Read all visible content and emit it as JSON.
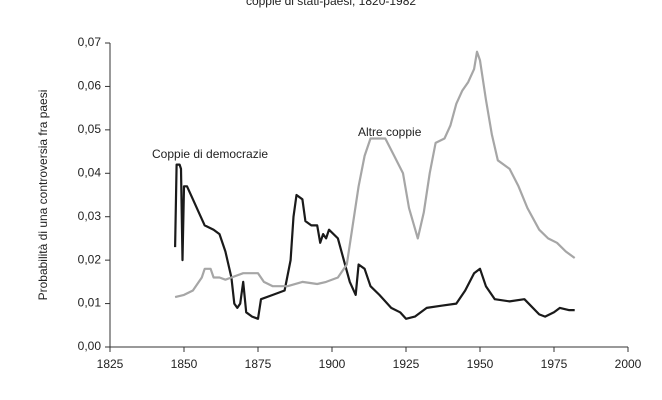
{
  "chart_data": {
    "type": "line",
    "title": "coppie di stati-paesi, 1820-1982",
    "y_label": "Probabilità di una controversia fra paesi",
    "xlim": [
      1825,
      2000
    ],
    "xticks": [
      1825,
      1850,
      1875,
      1900,
      1925,
      1950,
      1975,
      2000
    ],
    "ylim": [
      0,
      0.07
    ],
    "yticks": [
      {
        "value": 0,
        "label": "0,00"
      },
      {
        "value": 0.01,
        "label": "0,01"
      },
      {
        "value": 0.02,
        "label": "0,02"
      },
      {
        "value": 0.03,
        "label": "0,03"
      },
      {
        "value": 0.04,
        "label": "0,04"
      },
      {
        "value": 0.05,
        "label": "0,05"
      },
      {
        "value": 0.06,
        "label": "0,06"
      },
      {
        "value": 0.07,
        "label": "0,07"
      }
    ],
    "grid": false,
    "series": [
      {
        "name": "Coppie di democrazie",
        "color": "#1a1a1a",
        "x": [
          1847,
          1847.5,
          1848.5,
          1849,
          1849.5,
          1850,
          1851,
          1853,
          1855,
          1857,
          1860,
          1862,
          1864,
          1866,
          1867,
          1868,
          1869,
          1870,
          1871,
          1873,
          1875,
          1876,
          1880,
          1884,
          1886,
          1887,
          1888,
          1890,
          1891,
          1893,
          1895,
          1896,
          1897,
          1898,
          1899,
          1902,
          1904,
          1906,
          1908,
          1909,
          1911,
          1913,
          1916,
          1920,
          1923,
          1925,
          1928,
          1932,
          1937,
          1942,
          1945,
          1948,
          1950,
          1952,
          1955,
          1960,
          1965,
          1970,
          1972,
          1975,
          1977,
          1980,
          1982
        ],
        "values": [
          0.023,
          0.042,
          0.042,
          0.041,
          0.02,
          0.037,
          0.037,
          0.034,
          0.031,
          0.028,
          0.027,
          0.026,
          0.022,
          0.016,
          0.01,
          0.009,
          0.01,
          0.015,
          0.008,
          0.007,
          0.0065,
          0.011,
          0.012,
          0.013,
          0.02,
          0.03,
          0.035,
          0.034,
          0.029,
          0.028,
          0.028,
          0.024,
          0.026,
          0.025,
          0.027,
          0.025,
          0.02,
          0.015,
          0.012,
          0.019,
          0.018,
          0.014,
          0.012,
          0.009,
          0.008,
          0.0065,
          0.007,
          0.009,
          0.0095,
          0.01,
          0.013,
          0.017,
          0.018,
          0.014,
          0.011,
          0.0105,
          0.011,
          0.0075,
          0.007,
          0.008,
          0.009,
          0.0085,
          0.0085
        ]
      },
      {
        "name": "Altre coppie",
        "color": "#a6a6a6",
        "x": [
          1847,
          1850,
          1853,
          1856,
          1857,
          1859,
          1860,
          1862,
          1864,
          1866,
          1870,
          1872,
          1875,
          1877,
          1880,
          1885,
          1890,
          1895,
          1898,
          1902,
          1905,
          1907,
          1909,
          1911,
          1913,
          1918,
          1921,
          1924,
          1926,
          1929,
          1931,
          1933,
          1935,
          1938,
          1940,
          1942,
          1944,
          1946,
          1948,
          1949,
          1950,
          1952,
          1954,
          1956,
          1960,
          1963,
          1966,
          1970,
          1973,
          1976,
          1979,
          1982
        ],
        "values": [
          0.0115,
          0.012,
          0.013,
          0.016,
          0.018,
          0.018,
          0.016,
          0.016,
          0.0155,
          0.016,
          0.017,
          0.017,
          0.017,
          0.015,
          0.014,
          0.014,
          0.015,
          0.0145,
          0.015,
          0.016,
          0.019,
          0.028,
          0.037,
          0.044,
          0.048,
          0.048,
          0.044,
          0.04,
          0.032,
          0.025,
          0.031,
          0.04,
          0.047,
          0.048,
          0.051,
          0.056,
          0.059,
          0.061,
          0.064,
          0.068,
          0.066,
          0.057,
          0.049,
          0.043,
          0.041,
          0.037,
          0.032,
          0.027,
          0.025,
          0.024,
          0.022,
          0.0205
        ]
      }
    ]
  }
}
